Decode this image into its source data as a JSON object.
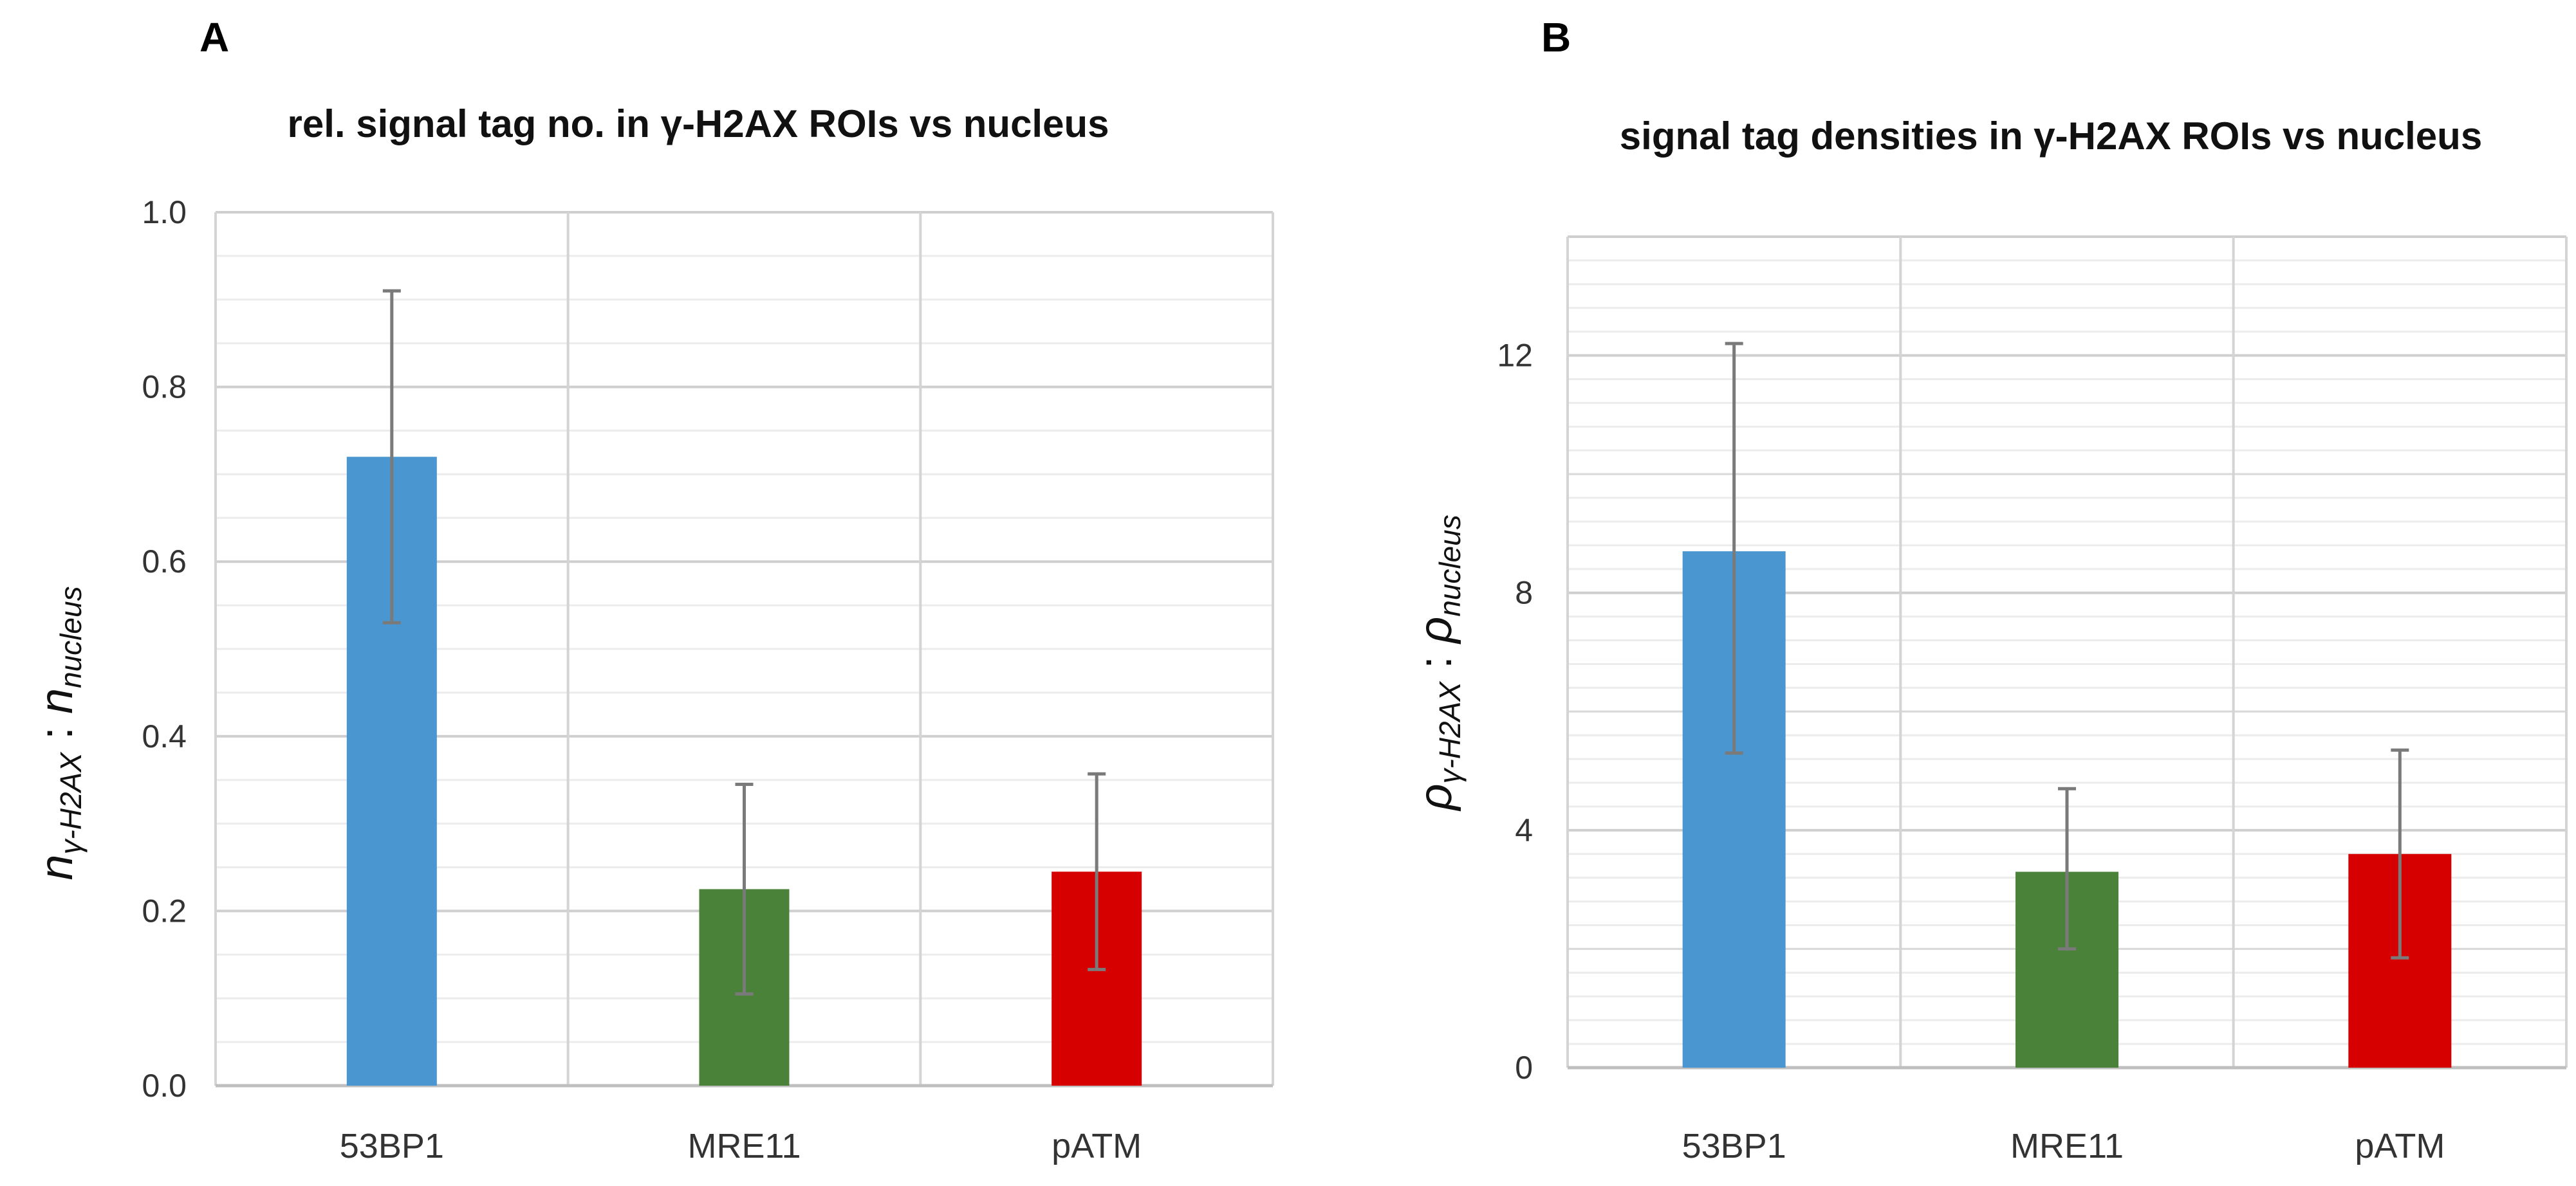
{
  "chart_data": [
    {
      "type": "bar",
      "panel": "A",
      "title": "rel. signal tag no. in γ-H2AX ROIs vs nucleus",
      "ylabel": {
        "main": "n",
        "sub1": "γ-H2AX",
        "sep": " : ",
        "main2": "n",
        "sub2": "nucleus"
      },
      "categories": [
        "53BP1",
        "MRE11",
        "pATM"
      ],
      "values": [
        0.72,
        0.225,
        0.245
      ],
      "error_low": [
        0.53,
        0.105,
        0.133
      ],
      "error_high": [
        0.91,
        0.345,
        0.357
      ],
      "colors": [
        "#4a96d1",
        "#4b823a",
        "#d60000"
      ],
      "ylim": [
        0,
        1.0
      ],
      "yticks": [
        0.0,
        0.2,
        0.4,
        0.6,
        0.8,
        1.0
      ],
      "ytick_labels": [
        "0.0",
        "0.2",
        "0.4",
        "0.6",
        "0.8",
        "1.0"
      ],
      "minor_step": 0.05,
      "grid": true
    },
    {
      "type": "bar",
      "panel": "B",
      "title": "signal tag densities in γ-H2AX ROIs vs nucleus",
      "ylabel": {
        "main": "ρ",
        "sub1": "γ-H2AX",
        "sep": " : ",
        "main2": "ρ",
        "sub2": "nucleus"
      },
      "categories": [
        "53BP1",
        "MRE11",
        "pATM"
      ],
      "values": [
        8.7,
        3.3,
        3.6
      ],
      "error_low": [
        5.3,
        2.0,
        1.85
      ],
      "error_high": [
        12.2,
        4.7,
        5.35
      ],
      "colors": [
        "#4a96d1",
        "#4b823a",
        "#d60000"
      ],
      "ylim": [
        0,
        14
      ],
      "yticks": [
        0,
        4,
        8,
        12
      ],
      "ytick_labels": [
        "0",
        "4",
        "8",
        "12"
      ],
      "minor_step": 0.4,
      "mid_step": 2,
      "grid": true
    }
  ]
}
